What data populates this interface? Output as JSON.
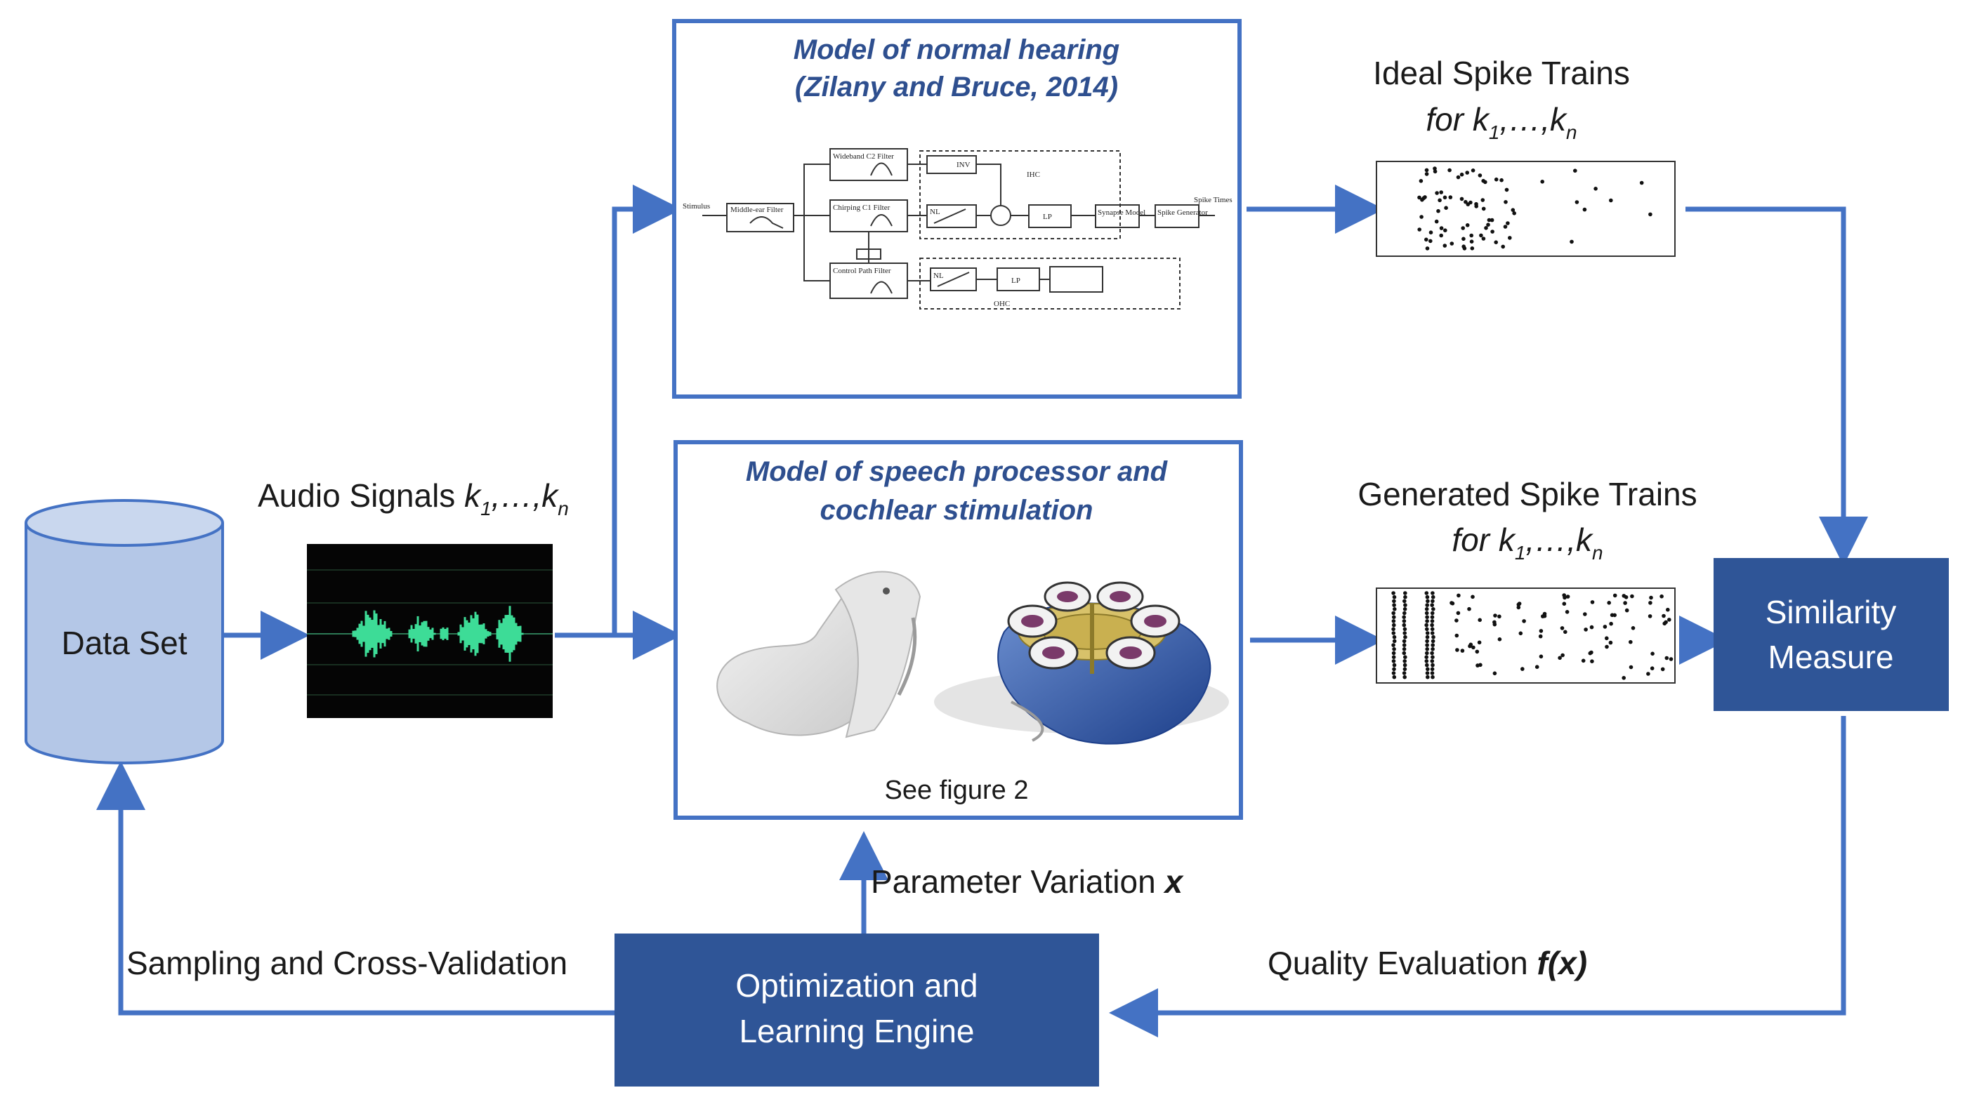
{
  "colors": {
    "accent_blue": "#4472C4",
    "dark_box": "#2F5597",
    "cylinder_fill": "#B4C7E7",
    "cylinder_stroke": "#4472C4",
    "title_text": "#2E4F8F",
    "waveform": "#3DDC97"
  },
  "data_set": {
    "label": "Data Set"
  },
  "audio": {
    "label": "Audio Signals ",
    "k": "k",
    "sub1": "1",
    "mid": ",…,",
    "subn": "n"
  },
  "normal_hearing": {
    "title_line1": "Model of normal hearing",
    "title_line2": "(Zilany and Bruce, 2014)",
    "mini": {
      "stimulus": "Stimulus",
      "middle_ear": "Middle-ear Filter",
      "wideband": "Wideband C2 Filter",
      "chirping": "Chirping C1 Filter",
      "control": "Control Path Filter",
      "inv": "INV",
      "nl": "NL",
      "lp": "LP",
      "ihc": "IHC",
      "ohc": "OHC",
      "synapse": "Synapse Model",
      "spike_gen": "Spike Generator",
      "spike_times": "Spike Times"
    }
  },
  "speech_processor": {
    "title_line1": "Model of speech processor and",
    "title_line2": "cochlear stimulation",
    "caption": "See figure 2"
  },
  "ideal_spikes": {
    "label": "Ideal Spike Trains",
    "for": "for ",
    "k": "k",
    "sub1": "1",
    "mid": ",…,",
    "subn": "n"
  },
  "generated_spikes": {
    "label": "Generated Spike Trains",
    "for": "for ",
    "k": "k",
    "sub1": "1",
    "mid": ",…,",
    "subn": "n"
  },
  "similarity": {
    "line1": "Similarity",
    "line2": "Measure"
  },
  "optimization": {
    "line1": "Optimization and",
    "line2": "Learning Engine"
  },
  "parameter_variation": {
    "label": "Parameter Variation ",
    "var": "x"
  },
  "quality_evaluation": {
    "label": "Quality Evaluation ",
    "var": "f(x)"
  },
  "sampling": {
    "label": "Sampling and Cross-Validation"
  }
}
